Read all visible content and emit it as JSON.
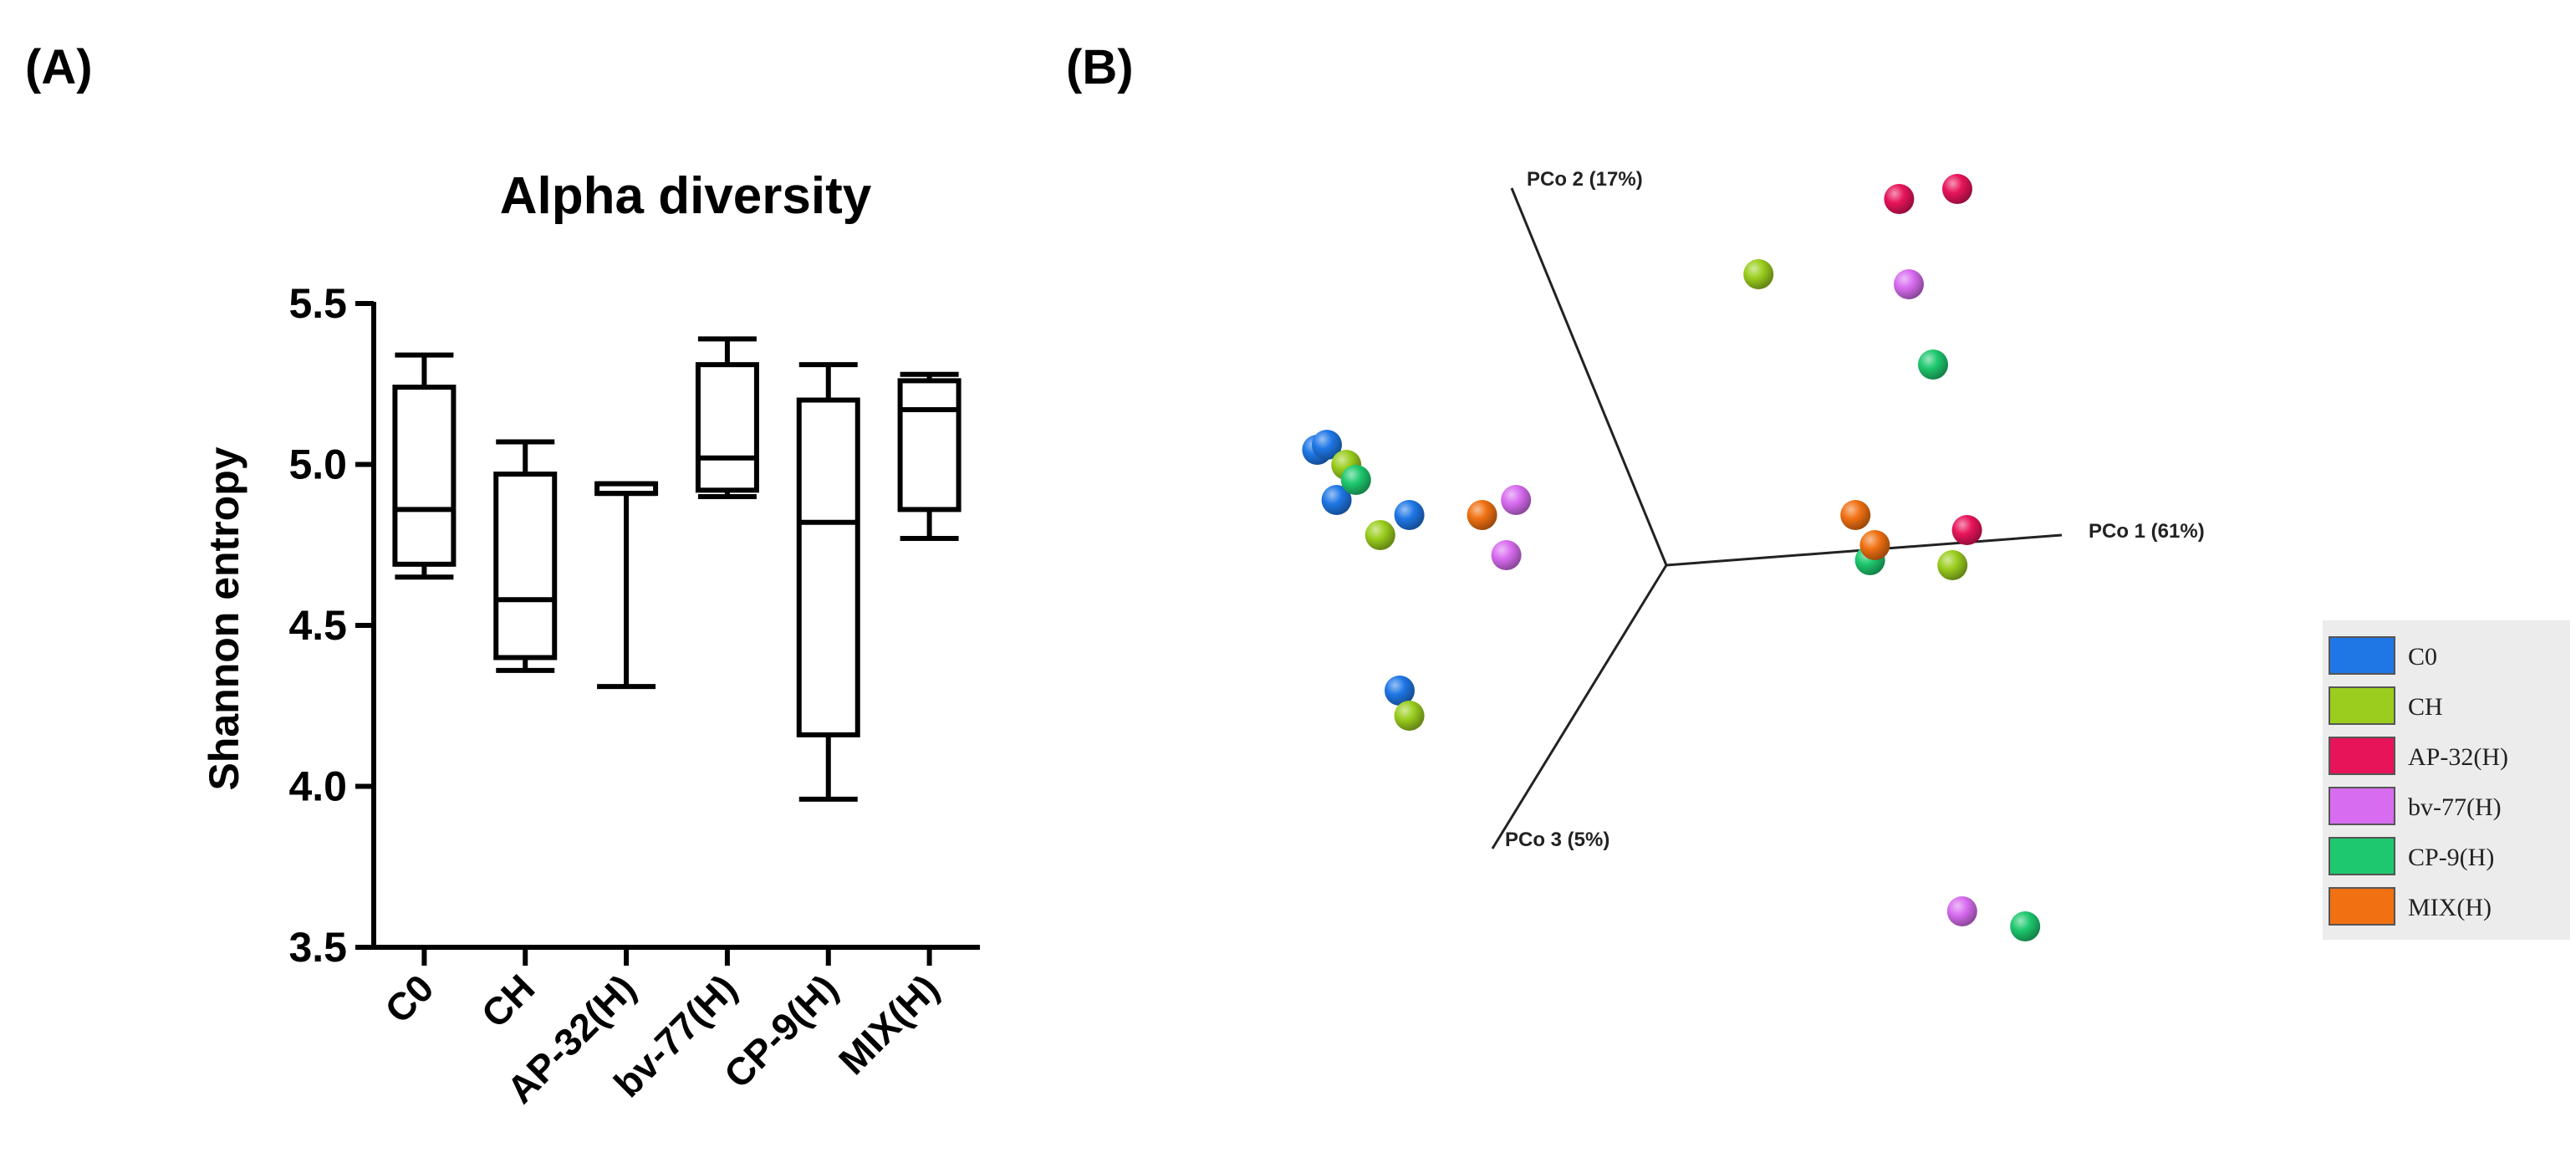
{
  "panels": {
    "a_label": "(A)",
    "b_label": "(B)"
  },
  "chart_data": [
    {
      "type": "box",
      "title": "Alpha diversity",
      "xlabel": "",
      "ylabel": "Shannon entropy",
      "ylim": [
        3.5,
        5.5
      ],
      "yticks": [
        3.5,
        4.0,
        4.5,
        5.0,
        5.5
      ],
      "ytick_labels": [
        "3.5",
        "4.0",
        "4.5",
        "5.0",
        "5.5"
      ],
      "categories": [
        "C0",
        "CH",
        "AP-32(H)",
        "bv-77(H)",
        "CP-9(H)",
        "MIX(H)"
      ],
      "boxes": [
        {
          "name": "C0",
          "min": 4.65,
          "q1": 4.69,
          "median": 4.86,
          "q3": 5.24,
          "max": 5.34
        },
        {
          "name": "CH",
          "min": 4.36,
          "q1": 4.4,
          "median": 4.58,
          "q3": 4.97,
          "max": 5.07
        },
        {
          "name": "AP-32(H)",
          "min": 4.31,
          "q1": 4.91,
          "median": 4.91,
          "q3": 4.94,
          "max": 4.94
        },
        {
          "name": "bv-77(H)",
          "min": 4.9,
          "q1": 4.92,
          "median": 5.02,
          "q3": 5.31,
          "max": 5.39
        },
        {
          "name": "CP-9(H)",
          "min": 3.96,
          "q1": 4.16,
          "median": 4.82,
          "q3": 5.2,
          "max": 5.31
        },
        {
          "name": "MIX(H)",
          "min": 4.77,
          "q1": 4.86,
          "median": 5.17,
          "q3": 5.26,
          "max": 5.28
        }
      ]
    },
    {
      "type": "scatter",
      "title": "",
      "axes": [
        "PCo 1 (61%)",
        "PCo 2 (17%)",
        "PCo 3 (5%)"
      ],
      "legend_position": "right",
      "groups": [
        {
          "name": "C0",
          "color": "#1f77e6",
          "points": [
            [
              -0.72,
              0.23
            ],
            [
              -0.7,
              0.24
            ],
            [
              -0.68,
              0.13
            ],
            [
              -0.53,
              0.1
            ],
            [
              -0.55,
              -0.25
            ]
          ]
        },
        {
          "name": "CH",
          "color": "#9acd1e",
          "points": [
            [
              -0.66,
              0.2
            ],
            [
              -0.59,
              0.06
            ],
            [
              -0.53,
              -0.3
            ],
            [
              0.19,
              0.58
            ],
            [
              0.59,
              0.0
            ]
          ]
        },
        {
          "name": "AP-32(H)",
          "color": "#e8145a",
          "points": [
            [
              0.48,
              0.73
            ],
            [
              0.6,
              0.75
            ],
            [
              0.62,
              0.07
            ]
          ]
        },
        {
          "name": "bv-77(H)",
          "color": "#d86cf0",
          "points": [
            [
              -0.31,
              0.13
            ],
            [
              -0.33,
              0.02
            ],
            [
              0.5,
              0.56
            ],
            [
              0.61,
              -0.69
            ]
          ]
        },
        {
          "name": "CP-9(H)",
          "color": "#1ec86e",
          "points": [
            [
              -0.64,
              0.17
            ],
            [
              0.55,
              0.4
            ],
            [
              0.42,
              0.01
            ],
            [
              0.74,
              -0.72
            ]
          ]
        },
        {
          "name": "MIX(H)",
          "color": "#f07012",
          "points": [
            [
              -0.38,
              0.1
            ],
            [
              0.39,
              0.1
            ],
            [
              0.43,
              0.04
            ]
          ]
        }
      ]
    }
  ]
}
